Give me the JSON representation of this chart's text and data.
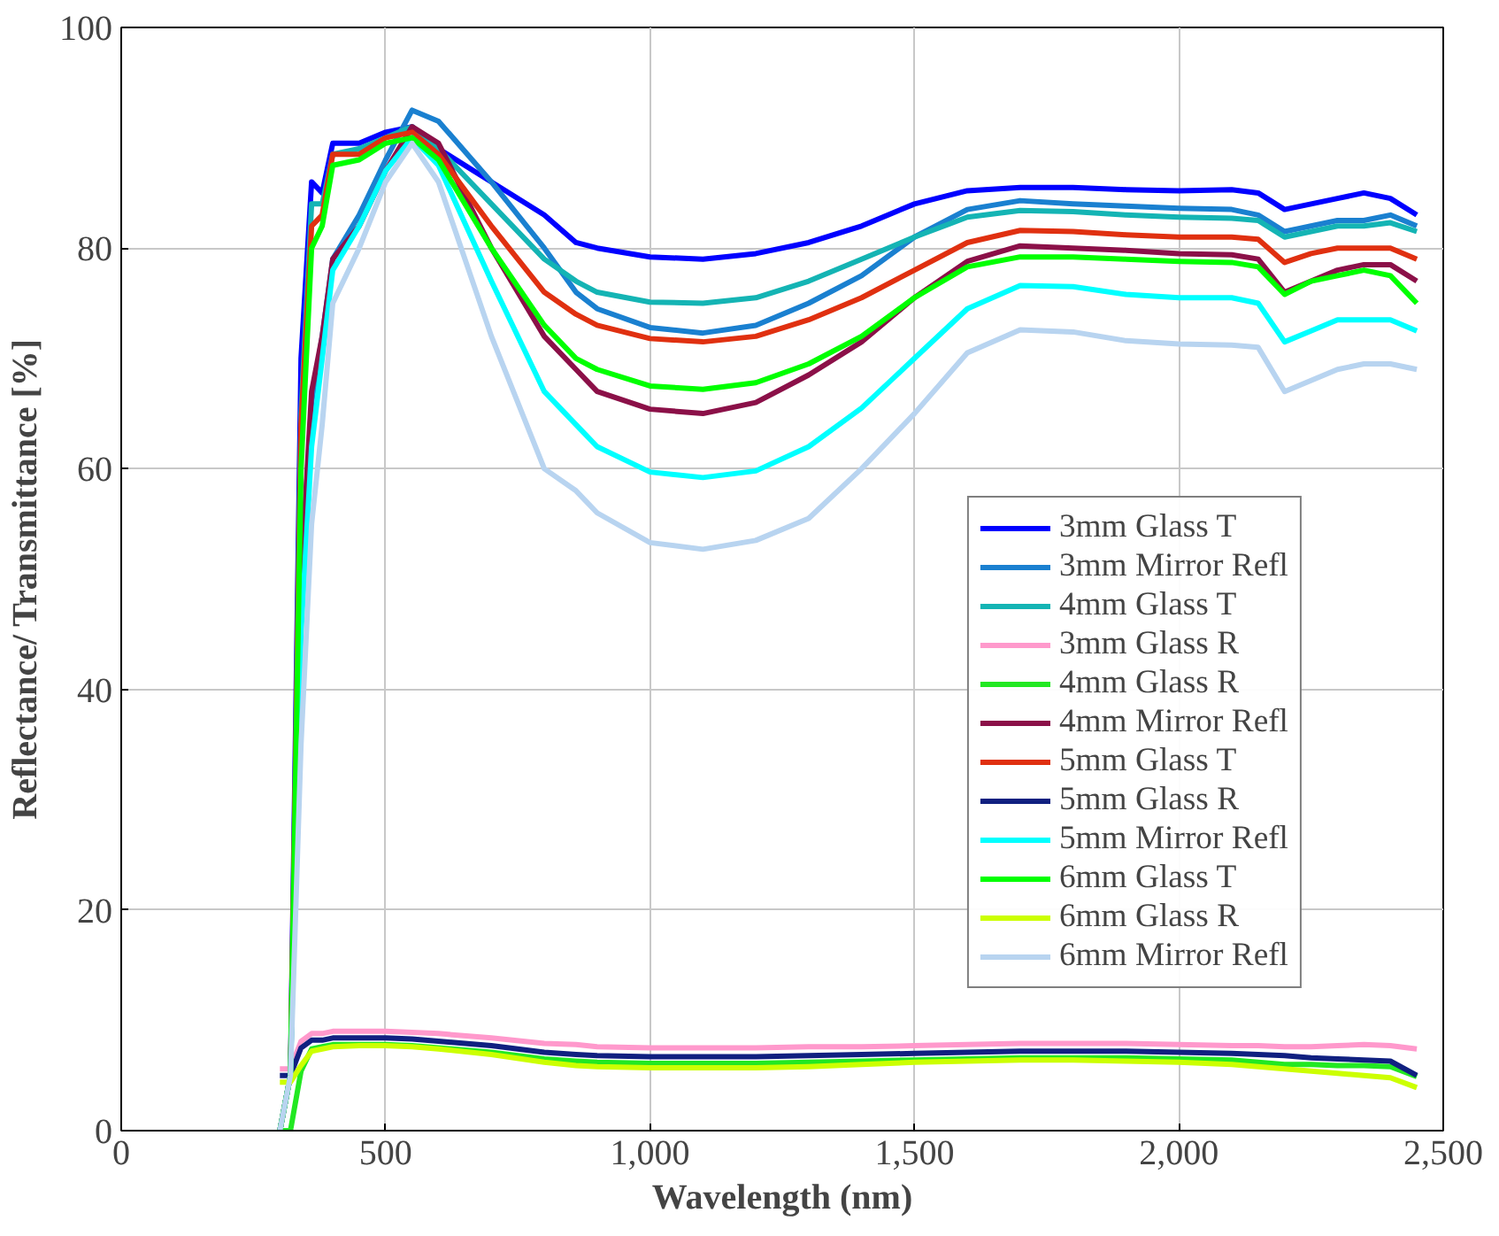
{
  "chart_data": {
    "type": "line",
    "xlabel": "Wavelength (nm)",
    "ylabel": "Reflectance/ Transmittance [%]",
    "xlim": [
      0,
      2500
    ],
    "ylim": [
      0,
      100
    ],
    "xticks": [
      0,
      500,
      {
        "value": 1000,
        "label": "1,000"
      },
      {
        "value": 1500,
        "label": "1,500"
      },
      {
        "value": 2000,
        "label": "2,000"
      },
      {
        "value": 2500,
        "label": "2,500"
      }
    ],
    "yticks": [
      0,
      20,
      40,
      60,
      80,
      100
    ],
    "grid": true,
    "legend": "bottom right",
    "line_style": "solid",
    "marker": "none",
    "x": [
      300,
      320,
      340,
      360,
      380,
      400,
      450,
      500,
      550,
      600,
      700,
      800,
      860,
      900,
      1000,
      1100,
      1200,
      1300,
      1400,
      1500,
      1600,
      1700,
      1800,
      1900,
      2000,
      2100,
      2150,
      2200,
      2250,
      2300,
      2350,
      2400,
      2450
    ],
    "series": [
      {
        "name": "3mm Glass T",
        "color": "#0000ff",
        "values": [
          0,
          5,
          70,
          86,
          85,
          89.5,
          89.5,
          90.5,
          91,
          89,
          86,
          83,
          80.5,
          80,
          79.2,
          79,
          79.5,
          80.5,
          82,
          84,
          85.2,
          85.5,
          85.5,
          85.3,
          85.2,
          85.3,
          85,
          83.5,
          84,
          84.5,
          85,
          84.5,
          83
        ]
      },
      {
        "name": "3mm Mirror Refl",
        "color": "#1a80d0",
        "values": [
          0,
          5,
          50,
          66,
          72,
          79,
          83,
          88,
          92.5,
          91.5,
          86,
          80,
          76,
          74.5,
          72.8,
          72.3,
          73,
          75,
          77.5,
          81,
          83.5,
          84.3,
          84,
          83.8,
          83.6,
          83.5,
          83,
          81.5,
          82,
          82.5,
          82.5,
          83,
          82
        ]
      },
      {
        "name": "4mm Glass T",
        "color": "#14b4b4",
        "values": [
          0,
          5,
          65,
          84,
          84,
          88.5,
          89,
          90,
          91,
          89,
          84,
          79,
          77,
          76,
          75.1,
          75,
          75.5,
          77,
          79,
          81,
          82.8,
          83.4,
          83.3,
          83,
          82.8,
          82.7,
          82.5,
          81,
          81.5,
          82,
          82,
          82.3,
          81.5
        ]
      },
      {
        "name": "3mm Glass R",
        "color": "#ff99cc",
        "values": [
          5.6,
          5.6,
          8.1,
          8.8,
          8.8,
          9,
          9,
          9,
          8.9,
          8.8,
          8.4,
          7.9,
          7.8,
          7.6,
          7.5,
          7.5,
          7.5,
          7.6,
          7.6,
          7.7,
          7.8,
          7.9,
          7.9,
          7.9,
          7.8,
          7.7,
          7.7,
          7.6,
          7.6,
          7.7,
          7.8,
          7.7,
          7.4
        ]
      },
      {
        "name": "4mm Glass R",
        "color": "#22e822",
        "values": [
          0,
          0,
          5.4,
          7.4,
          7.6,
          7.8,
          7.8,
          7.8,
          7.7,
          7.5,
          7.1,
          6.5,
          6.3,
          6.2,
          6.1,
          6.1,
          6.1,
          6.2,
          6.3,
          6.4,
          6.5,
          6.6,
          6.6,
          6.6,
          6.5,
          6.4,
          6.2,
          6,
          6,
          5.9,
          5.9,
          5.8,
          4.9
        ]
      },
      {
        "name": "4mm Mirror Refl",
        "color": "#8b1048",
        "values": [
          0,
          5,
          50,
          67,
          72,
          79,
          82,
          87,
          91,
          89.5,
          80,
          72,
          69,
          67,
          65.4,
          65,
          66,
          68.5,
          71.5,
          75.5,
          78.8,
          80.2,
          80,
          79.8,
          79.5,
          79.4,
          79,
          76,
          77,
          78,
          78.5,
          78.5,
          77
        ]
      },
      {
        "name": "5mm Glass T",
        "color": "#e03010",
        "values": [
          0,
          5,
          64,
          82,
          83,
          88.5,
          88.5,
          90,
          90.5,
          88.5,
          82,
          76,
          74,
          73,
          71.8,
          71.5,
          72,
          73.5,
          75.5,
          78,
          80.5,
          81.6,
          81.5,
          81.2,
          81,
          81,
          80.8,
          78.7,
          79.5,
          80,
          80,
          80,
          79
        ]
      },
      {
        "name": "5mm Glass R",
        "color": "#102080",
        "values": [
          5,
          5,
          7.5,
          8.2,
          8.2,
          8.4,
          8.4,
          8.4,
          8.3,
          8.1,
          7.7,
          7.1,
          6.9,
          6.8,
          6.7,
          6.7,
          6.7,
          6.8,
          6.9,
          7,
          7.1,
          7.2,
          7.2,
          7.2,
          7.1,
          7,
          6.9,
          6.8,
          6.6,
          6.5,
          6.4,
          6.3,
          5
        ]
      },
      {
        "name": "5mm Mirror Refl",
        "color": "#00ffff",
        "values": [
          0,
          5,
          45,
          62,
          70,
          78,
          82,
          87,
          90,
          87.5,
          77,
          67,
          64,
          62,
          59.7,
          59.2,
          59.8,
          62,
          65.5,
          70,
          74.5,
          76.6,
          76.5,
          75.8,
          75.5,
          75.5,
          75,
          71.5,
          72.5,
          73.5,
          73.5,
          73.5,
          72.5
        ]
      },
      {
        "name": "6mm Glass T",
        "color": "#00ff00",
        "values": [
          0,
          5,
          60,
          80,
          82,
          87.5,
          88,
          89.5,
          90,
          88,
          80,
          73,
          70,
          69,
          67.5,
          67.2,
          67.8,
          69.5,
          72,
          75.5,
          78.3,
          79.2,
          79.2,
          79,
          78.8,
          78.7,
          78.3,
          75.8,
          77,
          77.5,
          78,
          77.5,
          75
        ]
      },
      {
        "name": "6mm Glass R",
        "color": "#ccff00",
        "values": [
          4.4,
          4.4,
          5.9,
          7.2,
          7.4,
          7.6,
          7.7,
          7.7,
          7.6,
          7.4,
          6.9,
          6.2,
          5.9,
          5.8,
          5.7,
          5.7,
          5.7,
          5.8,
          6,
          6.2,
          6.3,
          6.4,
          6.4,
          6.3,
          6.2,
          6,
          5.8,
          5.6,
          5.4,
          5.2,
          5,
          4.8,
          3.9
        ]
      },
      {
        "name": "6mm Mirror Refl",
        "color": "#b8d4f0",
        "values": [
          0,
          5,
          35,
          55,
          64,
          75,
          80,
          86,
          89.5,
          86,
          72,
          60,
          58,
          56,
          53.3,
          52.7,
          53.5,
          55.5,
          60,
          65,
          70.5,
          72.6,
          72.4,
          71.6,
          71.3,
          71.2,
          71,
          67,
          68,
          69,
          69.5,
          69.5,
          69
        ]
      }
    ]
  }
}
